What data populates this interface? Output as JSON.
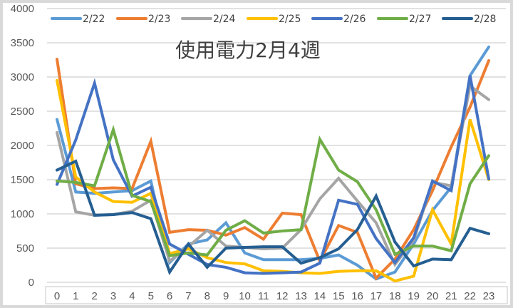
{
  "chart_data": {
    "type": "line",
    "title": "使用電力2月4週",
    "xlabel": "",
    "ylabel": "",
    "x": [
      0,
      1,
      2,
      3,
      4,
      5,
      6,
      7,
      8,
      9,
      10,
      11,
      12,
      13,
      14,
      15,
      16,
      17,
      18,
      19,
      20,
      21,
      22,
      23
    ],
    "ylim": [
      0,
      4000
    ],
    "yticks": [
      0,
      500,
      1000,
      1500,
      2000,
      2500,
      3000,
      3500,
      4000
    ],
    "grid": true,
    "legend_position": "top",
    "series": [
      {
        "name": "2/22",
        "color": "#5B9BD5",
        "values": [
          2380,
          1320,
          1300,
          1320,
          1340,
          1480,
          290,
          560,
          620,
          870,
          430,
          330,
          330,
          330,
          350,
          400,
          250,
          50,
          150,
          560,
          1050,
          1390,
          3020,
          3440
        ]
      },
      {
        "name": "2/23",
        "color": "#ED7D31",
        "values": [
          3260,
          1440,
          1370,
          1380,
          1370,
          2060,
          730,
          770,
          760,
          690,
          800,
          630,
          1010,
          990,
          310,
          830,
          730,
          60,
          340,
          770,
          1340,
          1980,
          2560,
          3240
        ]
      },
      {
        "name": "2/24",
        "color": "#A5A5A5",
        "values": [
          2190,
          1030,
          980,
          990,
          1040,
          1200,
          310,
          520,
          760,
          530,
          510,
          490,
          500,
          770,
          1220,
          1520,
          1190,
          870,
          260,
          620,
          1460,
          1410,
          2870,
          2670
        ]
      },
      {
        "name": "2/25",
        "color": "#FFC000",
        "values": [
          2950,
          1540,
          1320,
          1180,
          1170,
          1300,
          420,
          490,
          360,
          290,
          270,
          170,
          160,
          140,
          130,
          160,
          170,
          170,
          20,
          90,
          1060,
          560,
          2380,
          1500
        ]
      },
      {
        "name": "2/26",
        "color": "#4472C4",
        "values": [
          1430,
          2080,
          2910,
          1790,
          1260,
          1390,
          560,
          410,
          260,
          220,
          140,
          130,
          140,
          150,
          280,
          1200,
          1140,
          640,
          290,
          650,
          1480,
          1340,
          3020,
          1510
        ]
      },
      {
        "name": "2/27",
        "color": "#70AD47",
        "values": [
          1480,
          1460,
          1410,
          2230,
          1270,
          1180,
          390,
          430,
          400,
          760,
          900,
          720,
          750,
          770,
          2090,
          1640,
          1470,
          1060,
          410,
          530,
          530,
          460,
          1440,
          1850
        ]
      },
      {
        "name": "2/28",
        "color": "#255E91",
        "values": [
          1640,
          1770,
          980,
          990,
          1020,
          930,
          150,
          560,
          220,
          500,
          510,
          520,
          520,
          280,
          360,
          490,
          770,
          1260,
          590,
          240,
          340,
          330,
          790,
          710
        ]
      }
    ]
  },
  "legend": {
    "items": [
      {
        "label": "2/22",
        "color": "#5B9BD5"
      },
      {
        "label": "2/23",
        "color": "#ED7D31"
      },
      {
        "label": "2/24",
        "color": "#A5A5A5"
      },
      {
        "label": "2/25",
        "color": "#FFC000"
      },
      {
        "label": "2/26",
        "color": "#4472C4"
      },
      {
        "label": "2/27",
        "color": "#70AD47"
      },
      {
        "label": "2/28",
        "color": "#255E91"
      }
    ]
  },
  "axis": {
    "y_labels": [
      "0",
      "500",
      "1000",
      "1500",
      "2000",
      "2500",
      "3000",
      "3500",
      "4000"
    ],
    "x_labels": [
      "0",
      "1",
      "2",
      "3",
      "4",
      "5",
      "6",
      "7",
      "8",
      "9",
      "10",
      "11",
      "12",
      "13",
      "14",
      "15",
      "16",
      "17",
      "18",
      "19",
      "20",
      "21",
      "22",
      "23"
    ]
  }
}
